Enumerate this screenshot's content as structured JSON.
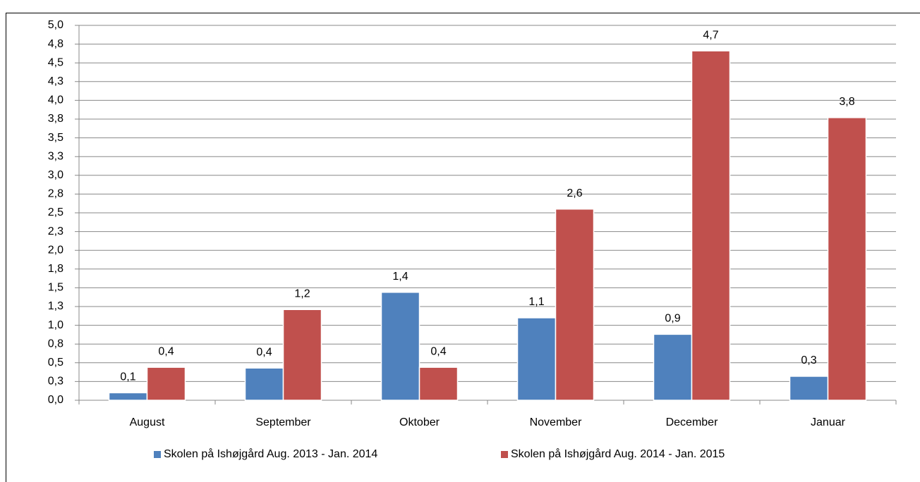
{
  "chart_data": {
    "type": "bar",
    "categories": [
      "August",
      "September",
      "Oktober",
      "November",
      "December",
      "Januar"
    ],
    "series": [
      {
        "name": "Skolen på Ishøjgård Aug. 2013 - Jan. 2014",
        "color": "#4f81bd",
        "values": [
          0.1,
          0.43,
          1.44,
          1.1,
          0.88,
          0.32
        ],
        "value_labels": [
          "0,1",
          "0,4",
          "1,4",
          "1,1",
          "0,9",
          "0,3"
        ]
      },
      {
        "name": "Skolen på Ishøjgård Aug. 2014 - Jan. 2015",
        "color": "#c0504d",
        "values": [
          0.44,
          1.21,
          0.44,
          2.55,
          4.66,
          3.77
        ],
        "value_labels": [
          "0,4",
          "1,2",
          "0,4",
          "2,6",
          "4,7",
          "3,8"
        ]
      }
    ],
    "ylim": [
      0,
      5
    ],
    "yticks": [
      {
        "value": 0,
        "label": "0,0"
      },
      {
        "value": 0.25,
        "label": "0,3"
      },
      {
        "value": 0.5,
        "label": "0,5"
      },
      {
        "value": 0.75,
        "label": "0,8"
      },
      {
        "value": 1,
        "label": "1,0"
      },
      {
        "value": 1.25,
        "label": "1,3"
      },
      {
        "value": 1.5,
        "label": "1,5"
      },
      {
        "value": 1.75,
        "label": "1,8"
      },
      {
        "value": 2,
        "label": "2,0"
      },
      {
        "value": 2.25,
        "label": "2,3"
      },
      {
        "value": 2.5,
        "label": "2,5"
      },
      {
        "value": 2.75,
        "label": "2,8"
      },
      {
        "value": 3,
        "label": "3,0"
      },
      {
        "value": 3.25,
        "label": "3,3"
      },
      {
        "value": 3.5,
        "label": "3,5"
      },
      {
        "value": 3.75,
        "label": "3,8"
      },
      {
        "value": 4,
        "label": "4,0"
      },
      {
        "value": 4.25,
        "label": "4,3"
      },
      {
        "value": 4.5,
        "label": "4,5"
      },
      {
        "value": 4.75,
        "label": "4,8"
      },
      {
        "value": 5,
        "label": "5,0"
      }
    ],
    "grid": true,
    "legend": "bottom"
  }
}
